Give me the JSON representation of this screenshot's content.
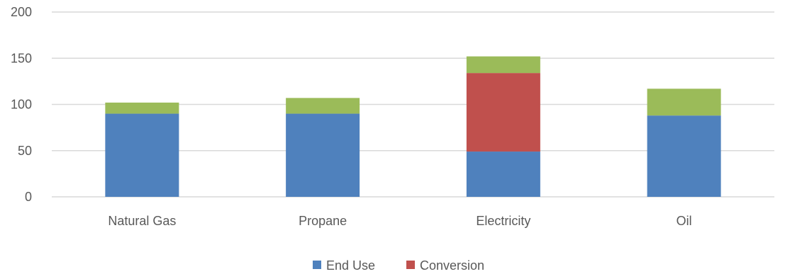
{
  "chart_data": {
    "type": "bar",
    "stacked": true,
    "categories": [
      "Natural Gas",
      "Propane",
      "Electricity",
      "Oil"
    ],
    "series": [
      {
        "name": "End Use",
        "color": "#4f81bd",
        "values": [
          90,
          90,
          49,
          88
        ]
      },
      {
        "name": "Conversion",
        "color": "#c0504d",
        "values": [
          0,
          0,
          85,
          0
        ]
      },
      {
        "name": "",
        "color": "#9bbb59",
        "values": [
          12,
          17,
          18,
          29
        ]
      }
    ],
    "ylim": [
      0,
      200
    ],
    "yticks": [
      "0",
      "50",
      "100",
      "150",
      "200"
    ],
    "grid": true,
    "legend_position": "bottom",
    "gridline_color": "#d9d9d9",
    "text_color": "#595959"
  }
}
